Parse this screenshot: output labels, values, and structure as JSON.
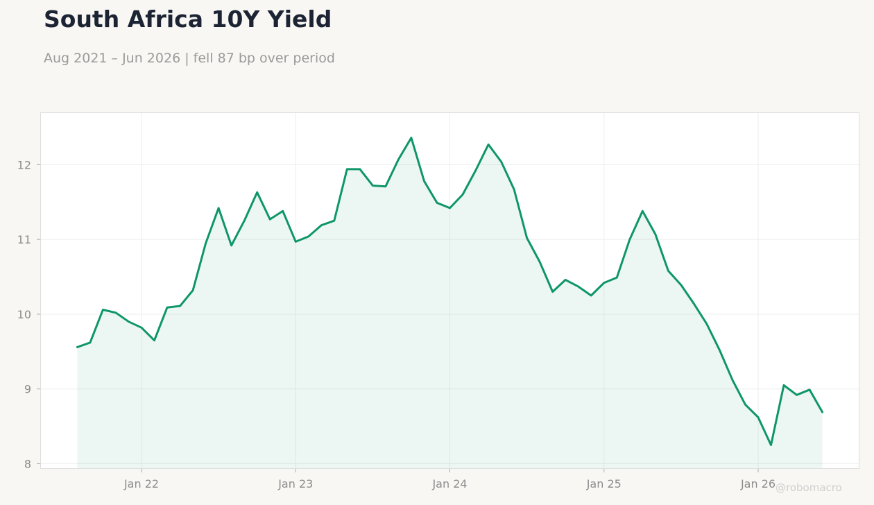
{
  "chart_data": {
    "type": "area",
    "title": "South Africa 10Y Yield",
    "subtitle": "Aug 2021 – Jun 2026 | fell 87 bp over period",
    "watermark": "@robomacro",
    "xlabel": "",
    "ylabel": "",
    "ylim": [
      7.93,
      12.7
    ],
    "grid": true,
    "legend": "none",
    "x_start": "2021-08",
    "x_end": "2026-06",
    "x_ticks": [
      {
        "date": "2022-01",
        "label": "Jan 22"
      },
      {
        "date": "2023-01",
        "label": "Jan 23"
      },
      {
        "date": "2024-01",
        "label": "Jan 24"
      },
      {
        "date": "2025-01",
        "label": "Jan 25"
      },
      {
        "date": "2026-01",
        "label": "Jan 26"
      }
    ],
    "y_ticks": [
      8,
      9,
      10,
      11,
      12
    ],
    "colors": {
      "line": "#0f9668",
      "fill": "#0f9668",
      "grid": "#eeeeee",
      "frame": "#dddddd"
    },
    "series": [
      {
        "x": [
          "2021-08",
          "2021-09",
          "2021-10",
          "2021-11",
          "2021-12",
          "2022-01",
          "2022-02",
          "2022-03",
          "2022-04",
          "2022-05",
          "2022-06",
          "2022-07",
          "2022-08",
          "2022-09",
          "2022-10",
          "2022-11",
          "2022-12",
          "2023-01",
          "2023-02",
          "2023-03",
          "2023-04",
          "2023-05",
          "2023-06",
          "2023-07",
          "2023-08",
          "2023-09",
          "2023-10",
          "2023-11",
          "2023-12",
          "2024-01",
          "2024-02",
          "2024-03",
          "2024-04",
          "2024-05",
          "2024-06",
          "2024-07",
          "2024-08",
          "2024-09",
          "2024-10",
          "2024-11",
          "2024-12",
          "2025-01",
          "2025-02",
          "2025-03",
          "2025-04",
          "2025-05",
          "2025-06",
          "2025-07",
          "2025-08",
          "2025-09",
          "2025-10",
          "2025-11",
          "2025-12",
          "2026-01",
          "2026-02",
          "2026-03",
          "2026-04",
          "2026-05",
          "2026-06"
        ],
        "values": [
          9.56,
          9.62,
          10.06,
          10.02,
          9.9,
          9.82,
          9.65,
          10.09,
          10.11,
          10.32,
          10.95,
          11.42,
          10.92,
          11.25,
          11.63,
          11.27,
          11.38,
          10.97,
          11.04,
          11.19,
          11.25,
          11.94,
          11.94,
          11.72,
          11.71,
          12.07,
          12.36,
          11.78,
          11.49,
          11.42,
          11.6,
          11.92,
          12.27,
          12.04,
          11.67,
          11.02,
          10.7,
          10.3,
          10.46,
          10.37,
          10.25,
          10.42,
          10.49,
          11.0,
          11.38,
          11.07,
          10.58,
          10.39,
          10.14,
          9.87,
          9.52,
          9.12,
          8.79,
          8.62,
          8.25,
          9.05,
          8.92,
          8.99,
          8.69
        ]
      }
    ]
  }
}
